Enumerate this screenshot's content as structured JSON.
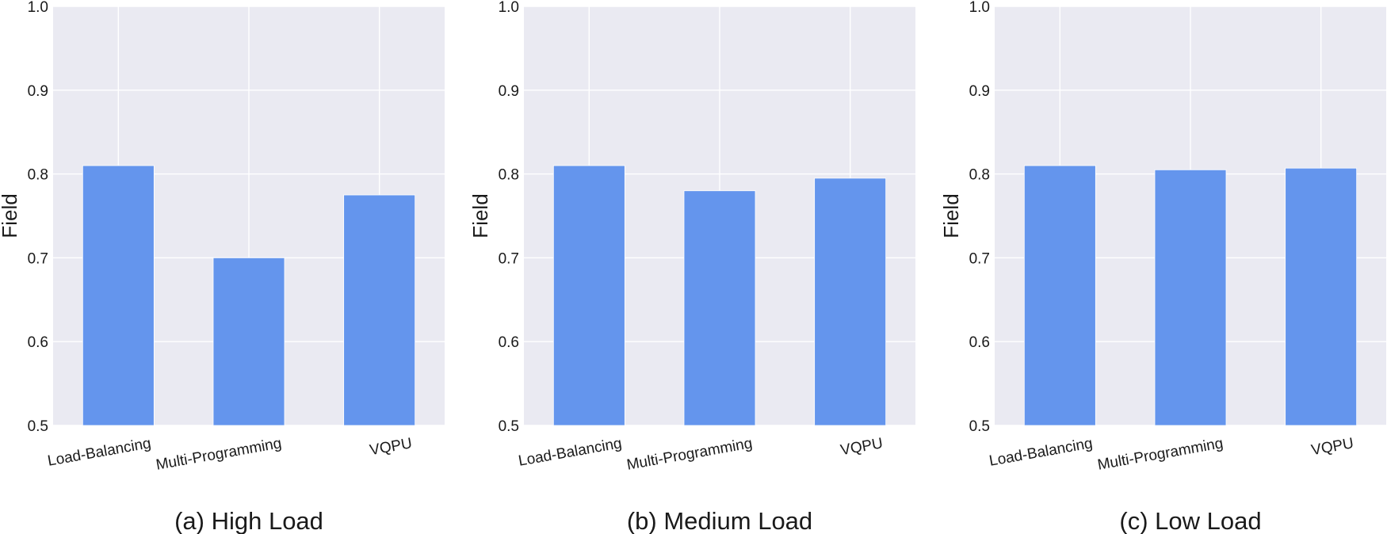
{
  "chart_data": [
    {
      "type": "bar",
      "caption": "(a) High Load",
      "ylabel": "Field",
      "ylim": [
        0.5,
        1.0
      ],
      "yticks": [
        "0.5",
        "0.6",
        "0.7",
        "0.8",
        "0.9",
        "1.0"
      ],
      "categories": [
        "Load-Balancing",
        "Multi-Programming",
        "VQPU"
      ],
      "values": [
        0.81,
        0.7,
        0.775
      ],
      "color": "#6495ed",
      "grid": true
    },
    {
      "type": "bar",
      "caption": "(b) Medium Load",
      "ylabel": "Field",
      "ylim": [
        0.5,
        1.0
      ],
      "yticks": [
        "0.5",
        "0.6",
        "0.7",
        "0.8",
        "0.9",
        "1.0"
      ],
      "categories": [
        "Load-Balancing",
        "Multi-Programming",
        "VQPU"
      ],
      "values": [
        0.81,
        0.78,
        0.795
      ],
      "color": "#6495ed",
      "grid": true
    },
    {
      "type": "bar",
      "caption": "(c) Low Load",
      "ylabel": "Field",
      "ylim": [
        0.5,
        1.0
      ],
      "yticks": [
        "0.5",
        "0.6",
        "0.7",
        "0.8",
        "0.9",
        "1.0"
      ],
      "categories": [
        "Load-Balancing",
        "Multi-Programming",
        "VQPU"
      ],
      "values": [
        0.81,
        0.805,
        0.807
      ],
      "color": "#6495ed",
      "grid": true
    }
  ]
}
